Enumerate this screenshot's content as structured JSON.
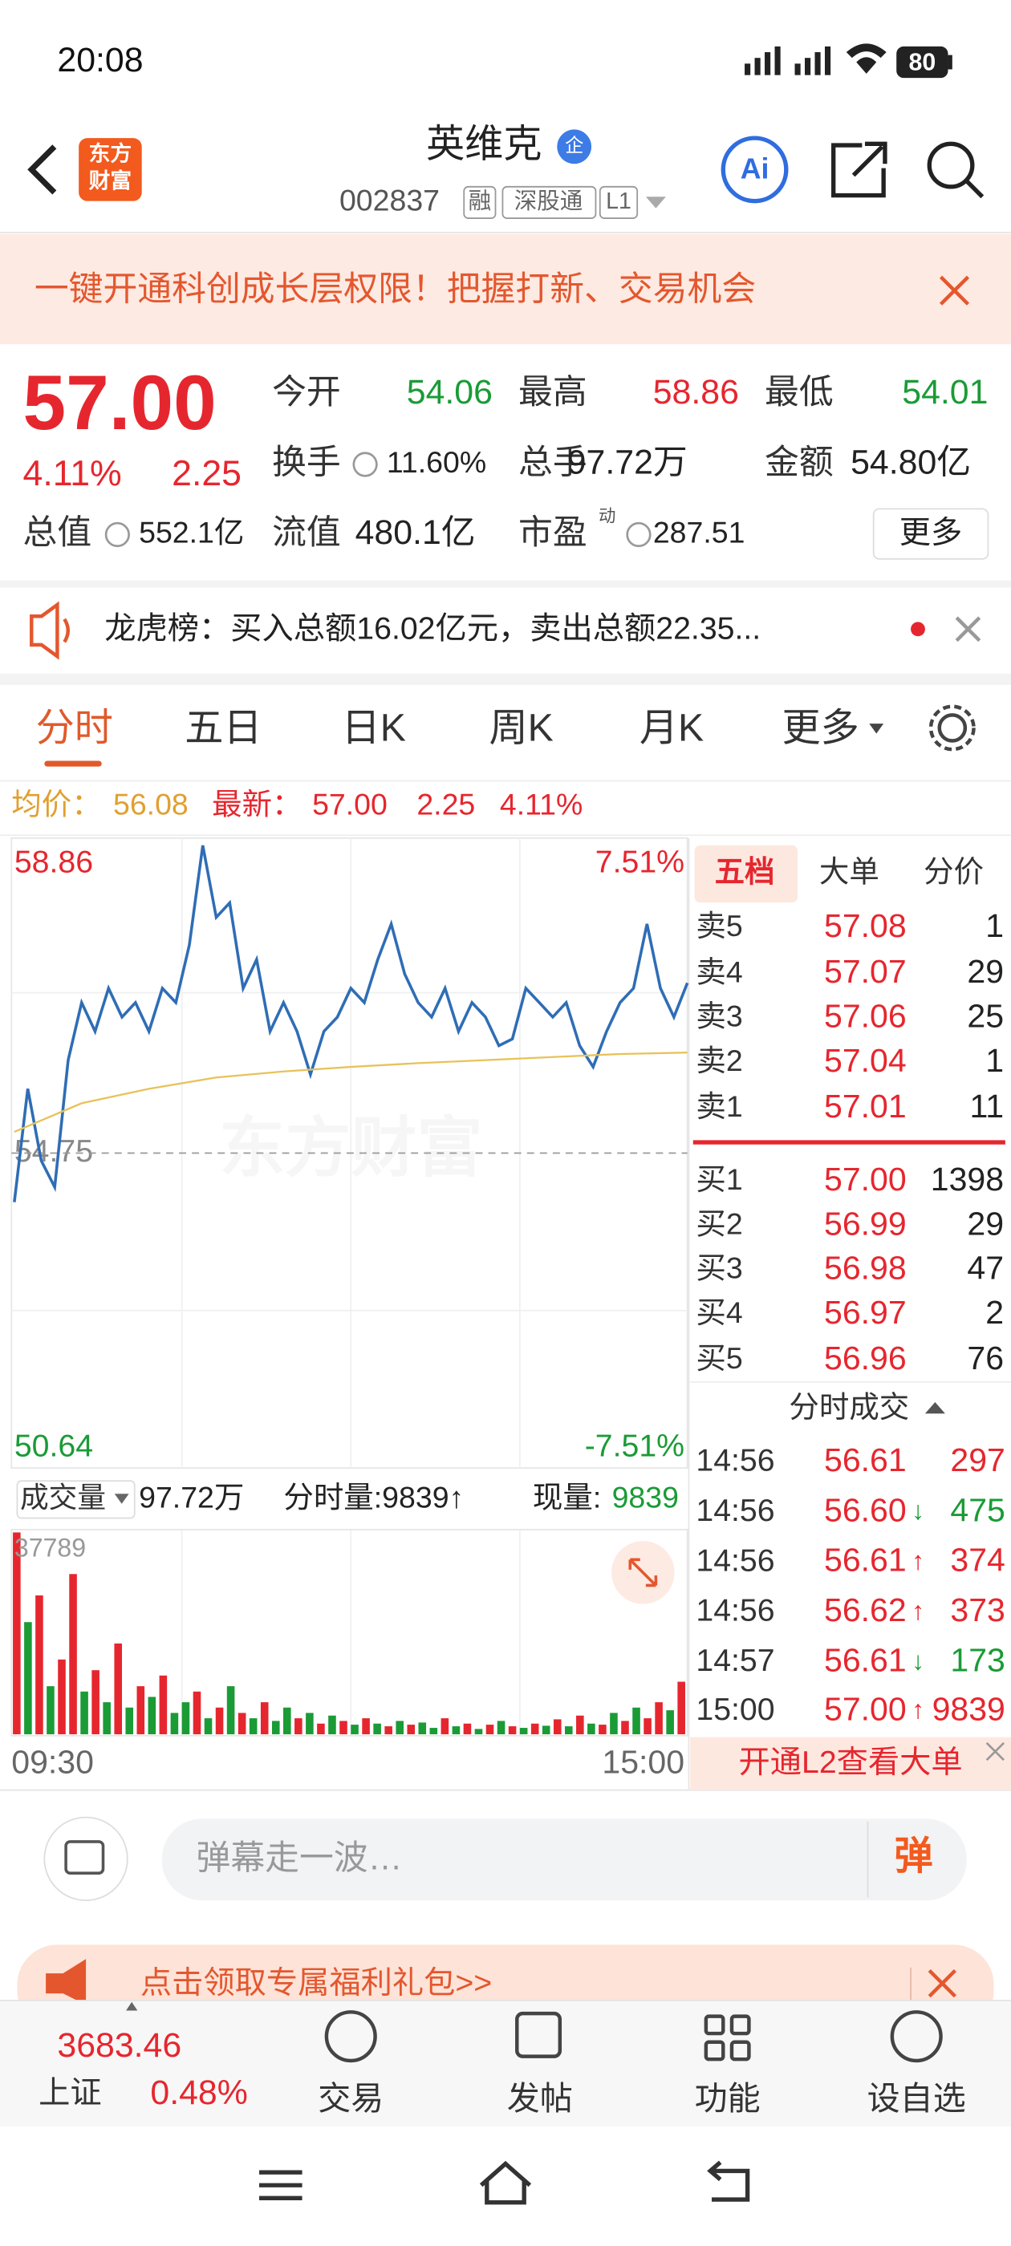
{
  "status": {
    "time": "20:08",
    "battery": "80"
  },
  "header": {
    "logo": [
      "东方",
      "财富"
    ],
    "name": "英维克",
    "badge": "企",
    "code": "002837",
    "tags": [
      "融",
      "深股通",
      "L1"
    ]
  },
  "banner": {
    "text": "一键开通科创成长层权限！把握打新、交易机会"
  },
  "quote": {
    "price": "57.00",
    "pct": "4.11%",
    "change": "2.25",
    "color": "#e6262e",
    "fields": [
      {
        "label": "今开",
        "value": "54.06",
        "color": "#1a9b36"
      },
      {
        "label": "最高",
        "value": "58.86",
        "color": "#e6262e"
      },
      {
        "label": "最低",
        "value": "54.01",
        "color": "#1a9b36"
      },
      {
        "label": "换手",
        "value": "11.60%",
        "color": "#222222"
      },
      {
        "label": "总手",
        "value": "97.72万",
        "color": "#222222"
      },
      {
        "label": "金额",
        "value": "54.80亿",
        "color": "#222222"
      },
      {
        "label": "总值",
        "value": "552.1亿",
        "color": "#222222"
      },
      {
        "label": "流值",
        "value": "480.1亿",
        "color": "#222222"
      },
      {
        "label": "市盈",
        "sup": "动",
        "value": "287.51",
        "color": "#222222"
      }
    ],
    "more": "更多"
  },
  "notice": {
    "text": "龙虎榜：买入总额16.02亿元，卖出总额22.35..."
  },
  "tabs": [
    "分时",
    "五日",
    "日K",
    "周K",
    "月K",
    "更多"
  ],
  "chart_info": {
    "avg_label": "均价：",
    "avg": "56.08",
    "latest_label": "最新：",
    "latest": "57.00",
    "change": "2.25",
    "pct": "4.11%"
  },
  "watermark": "东方财富",
  "chart_data": [
    {
      "type": "line",
      "x_labels": [
        "09:30",
        "15:00"
      ],
      "ylim": [
        50.64,
        58.86
      ],
      "yticks": [
        58.86,
        54.75,
        50.64
      ],
      "pct_ticks": [
        {
          "value": 58.86,
          "label": "7.51%"
        },
        {
          "value": 50.64,
          "label": "-7.51%"
        }
      ],
      "series": [
        {
          "color": "#2f6db5",
          "values": [
            54.1,
            55.6,
            54.65,
            54.3,
            55.98,
            56.74,
            56.36,
            56.93,
            56.55,
            56.74,
            56.36,
            56.93,
            56.74,
            57.5,
            58.82,
            57.87,
            58.06,
            56.93,
            57.31,
            56.36,
            56.74,
            56.36,
            55.79,
            56.36,
            56.55,
            56.93,
            56.74,
            57.31,
            57.78,
            57.12,
            56.74,
            56.55,
            56.93,
            56.36,
            56.74,
            56.55,
            56.17,
            56.26,
            56.93,
            56.74,
            56.55,
            56.74,
            56.17,
            55.89,
            56.36,
            56.74,
            56.93,
            57.78,
            56.93,
            56.55,
            57.0
          ]
        },
        {
          "color": "#e8c25a",
          "values": [
            55.03,
            55.41,
            55.6,
            55.75,
            55.83,
            55.89,
            55.94,
            55.98,
            56.02,
            56.06,
            56.08
          ]
        }
      ]
    },
    {
      "type": "bar",
      "label": "成交量",
      "total": "97.72万",
      "period_label": "分时量:9839↑",
      "current_label": "现量:",
      "current": "9839",
      "ylim": [
        0,
        37789
      ],
      "yticks": [
        37789
      ],
      "values": [
        37789,
        21000,
        26000,
        9000,
        14000,
        30000,
        8000,
        12000,
        6000,
        17000,
        5000,
        9000,
        7000,
        11000,
        4000,
        6000,
        8000,
        3000,
        5000,
        9000,
        4000,
        3000,
        6000,
        2500,
        5000,
        3000,
        4000,
        2000,
        3500,
        2500,
        1800,
        3000,
        2000,
        1500,
        2500,
        1800,
        2200,
        1200,
        3000,
        1500,
        2000,
        1000,
        1800,
        2500,
        1500,
        1200,
        2000,
        1600,
        2800,
        1500,
        3500,
        2000,
        1800,
        4000,
        2500,
        5000,
        3000,
        6000,
        4500,
        9839
      ],
      "colors": [
        "#e6262e",
        "#1a9b36",
        "#e6262e",
        "#1a9b36",
        "#e6262e",
        "#e6262e",
        "#1a9b36",
        "#e6262e",
        "#1a9b36",
        "#e6262e",
        "#1a9b36",
        "#e6262e",
        "#1a9b36",
        "#e6262e",
        "#1a9b36",
        "#1a9b36",
        "#e6262e",
        "#1a9b36",
        "#e6262e",
        "#1a9b36",
        "#e6262e",
        "#1a9b36",
        "#e6262e",
        "#1a9b36",
        "#1a9b36",
        "#e6262e",
        "#1a9b36",
        "#e6262e",
        "#1a9b36",
        "#e6262e",
        "#1a9b36",
        "#e6262e",
        "#1a9b36",
        "#e6262e",
        "#1a9b36",
        "#e6262e",
        "#1a9b36",
        "#1a9b36",
        "#e6262e",
        "#1a9b36",
        "#e6262e",
        "#1a9b36",
        "#e6262e",
        "#1a9b36",
        "#e6262e",
        "#1a9b36",
        "#e6262e",
        "#1a9b36",
        "#e6262e",
        "#1a9b36",
        "#e6262e",
        "#1a9b36",
        "#e6262e",
        "#1a9b36",
        "#e6262e",
        "#1a9b36",
        "#e6262e",
        "#e6262e",
        "#1a9b36",
        "#e6262e"
      ]
    }
  ],
  "order_book": {
    "tabs": [
      "五档",
      "大单",
      "分价"
    ],
    "asks": [
      [
        "卖5",
        "57.08",
        "1"
      ],
      [
        "卖4",
        "57.07",
        "29"
      ],
      [
        "卖3",
        "57.06",
        "25"
      ],
      [
        "卖2",
        "57.04",
        "1"
      ],
      [
        "卖1",
        "57.01",
        "11"
      ]
    ],
    "bids": [
      [
        "买1",
        "57.00",
        "1398"
      ],
      [
        "买2",
        "56.99",
        "29"
      ],
      [
        "买3",
        "56.98",
        "47"
      ],
      [
        "买4",
        "56.97",
        "2"
      ],
      [
        "买5",
        "56.96",
        "76"
      ]
    ]
  },
  "trades": {
    "title": "分时成交",
    "rows": [
      {
        "time": "14:56",
        "price": "56.61",
        "volume": "297",
        "color": "#e6262e"
      },
      {
        "time": "14:56",
        "price": "56.60",
        "arrow": "↓",
        "volume": "475",
        "color": "#1a9b36"
      },
      {
        "time": "14:56",
        "price": "56.61",
        "arrow": "↑",
        "volume": "374",
        "color": "#e6262e"
      },
      {
        "time": "14:56",
        "price": "56.62",
        "arrow": "↑",
        "volume": "373",
        "color": "#e6262e"
      },
      {
        "time": "14:57",
        "price": "56.61",
        "arrow": "↓",
        "volume": "173",
        "color": "#1a9b36"
      },
      {
        "time": "15:00",
        "price": "57.00",
        "arrow": "↑",
        "volume": "9839",
        "color": "#e6262e"
      }
    ]
  },
  "l2": "开通L2查看大单",
  "input": {
    "placeholder": "弹幕走一波…",
    "button": "弹"
  },
  "promo": "点击领取专属福利礼包>>",
  "bottom": {
    "index": "3683.46",
    "index_name": "上证",
    "index_pct": "0.48%",
    "nav": [
      "交易",
      "发帖",
      "功能",
      "设自选"
    ]
  }
}
